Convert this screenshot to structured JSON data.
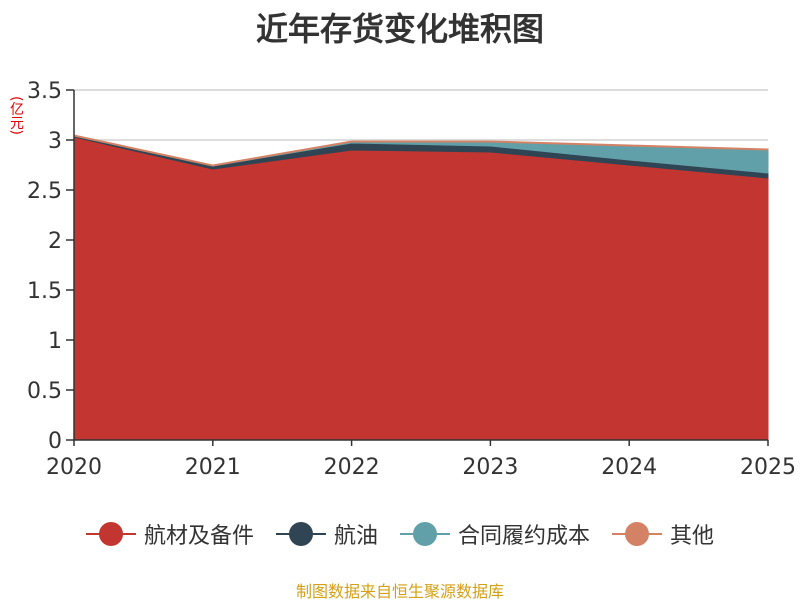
{
  "title": "近年存货变化堆积图",
  "unit": "(亿元)",
  "source": "制图数据来自恒生聚源数据库",
  "chart_data": {
    "type": "area",
    "stacked": true,
    "title": "近年存货变化堆积图",
    "ylabel": "(亿元)",
    "xlabel": "",
    "categories": [
      "2020",
      "2021",
      "2022",
      "2023",
      "2024",
      "2025"
    ],
    "ylim": [
      0,
      3.5
    ],
    "yticks": [
      "0",
      "0.5",
      "1",
      "1.5",
      "2",
      "2.5",
      "3",
      "3.5"
    ],
    "grid": true,
    "legend_position": "bottom",
    "series": [
      {
        "name": "航材及备件",
        "color": "#c23531",
        "values": [
          3.03,
          2.71,
          2.9,
          2.88,
          2.75,
          2.62
        ]
      },
      {
        "name": "航油",
        "color": "#2f4554",
        "values": [
          0.01,
          0.03,
          0.07,
          0.06,
          0.05,
          0.05
        ]
      },
      {
        "name": "合同履约成本",
        "color": "#61a0a8",
        "values": [
          0.0,
          0.0,
          0.01,
          0.04,
          0.14,
          0.23
        ]
      },
      {
        "name": "其他",
        "color": "#d48265",
        "values": [
          0.01,
          0.01,
          0.01,
          0.01,
          0.01,
          0.01
        ]
      }
    ]
  }
}
